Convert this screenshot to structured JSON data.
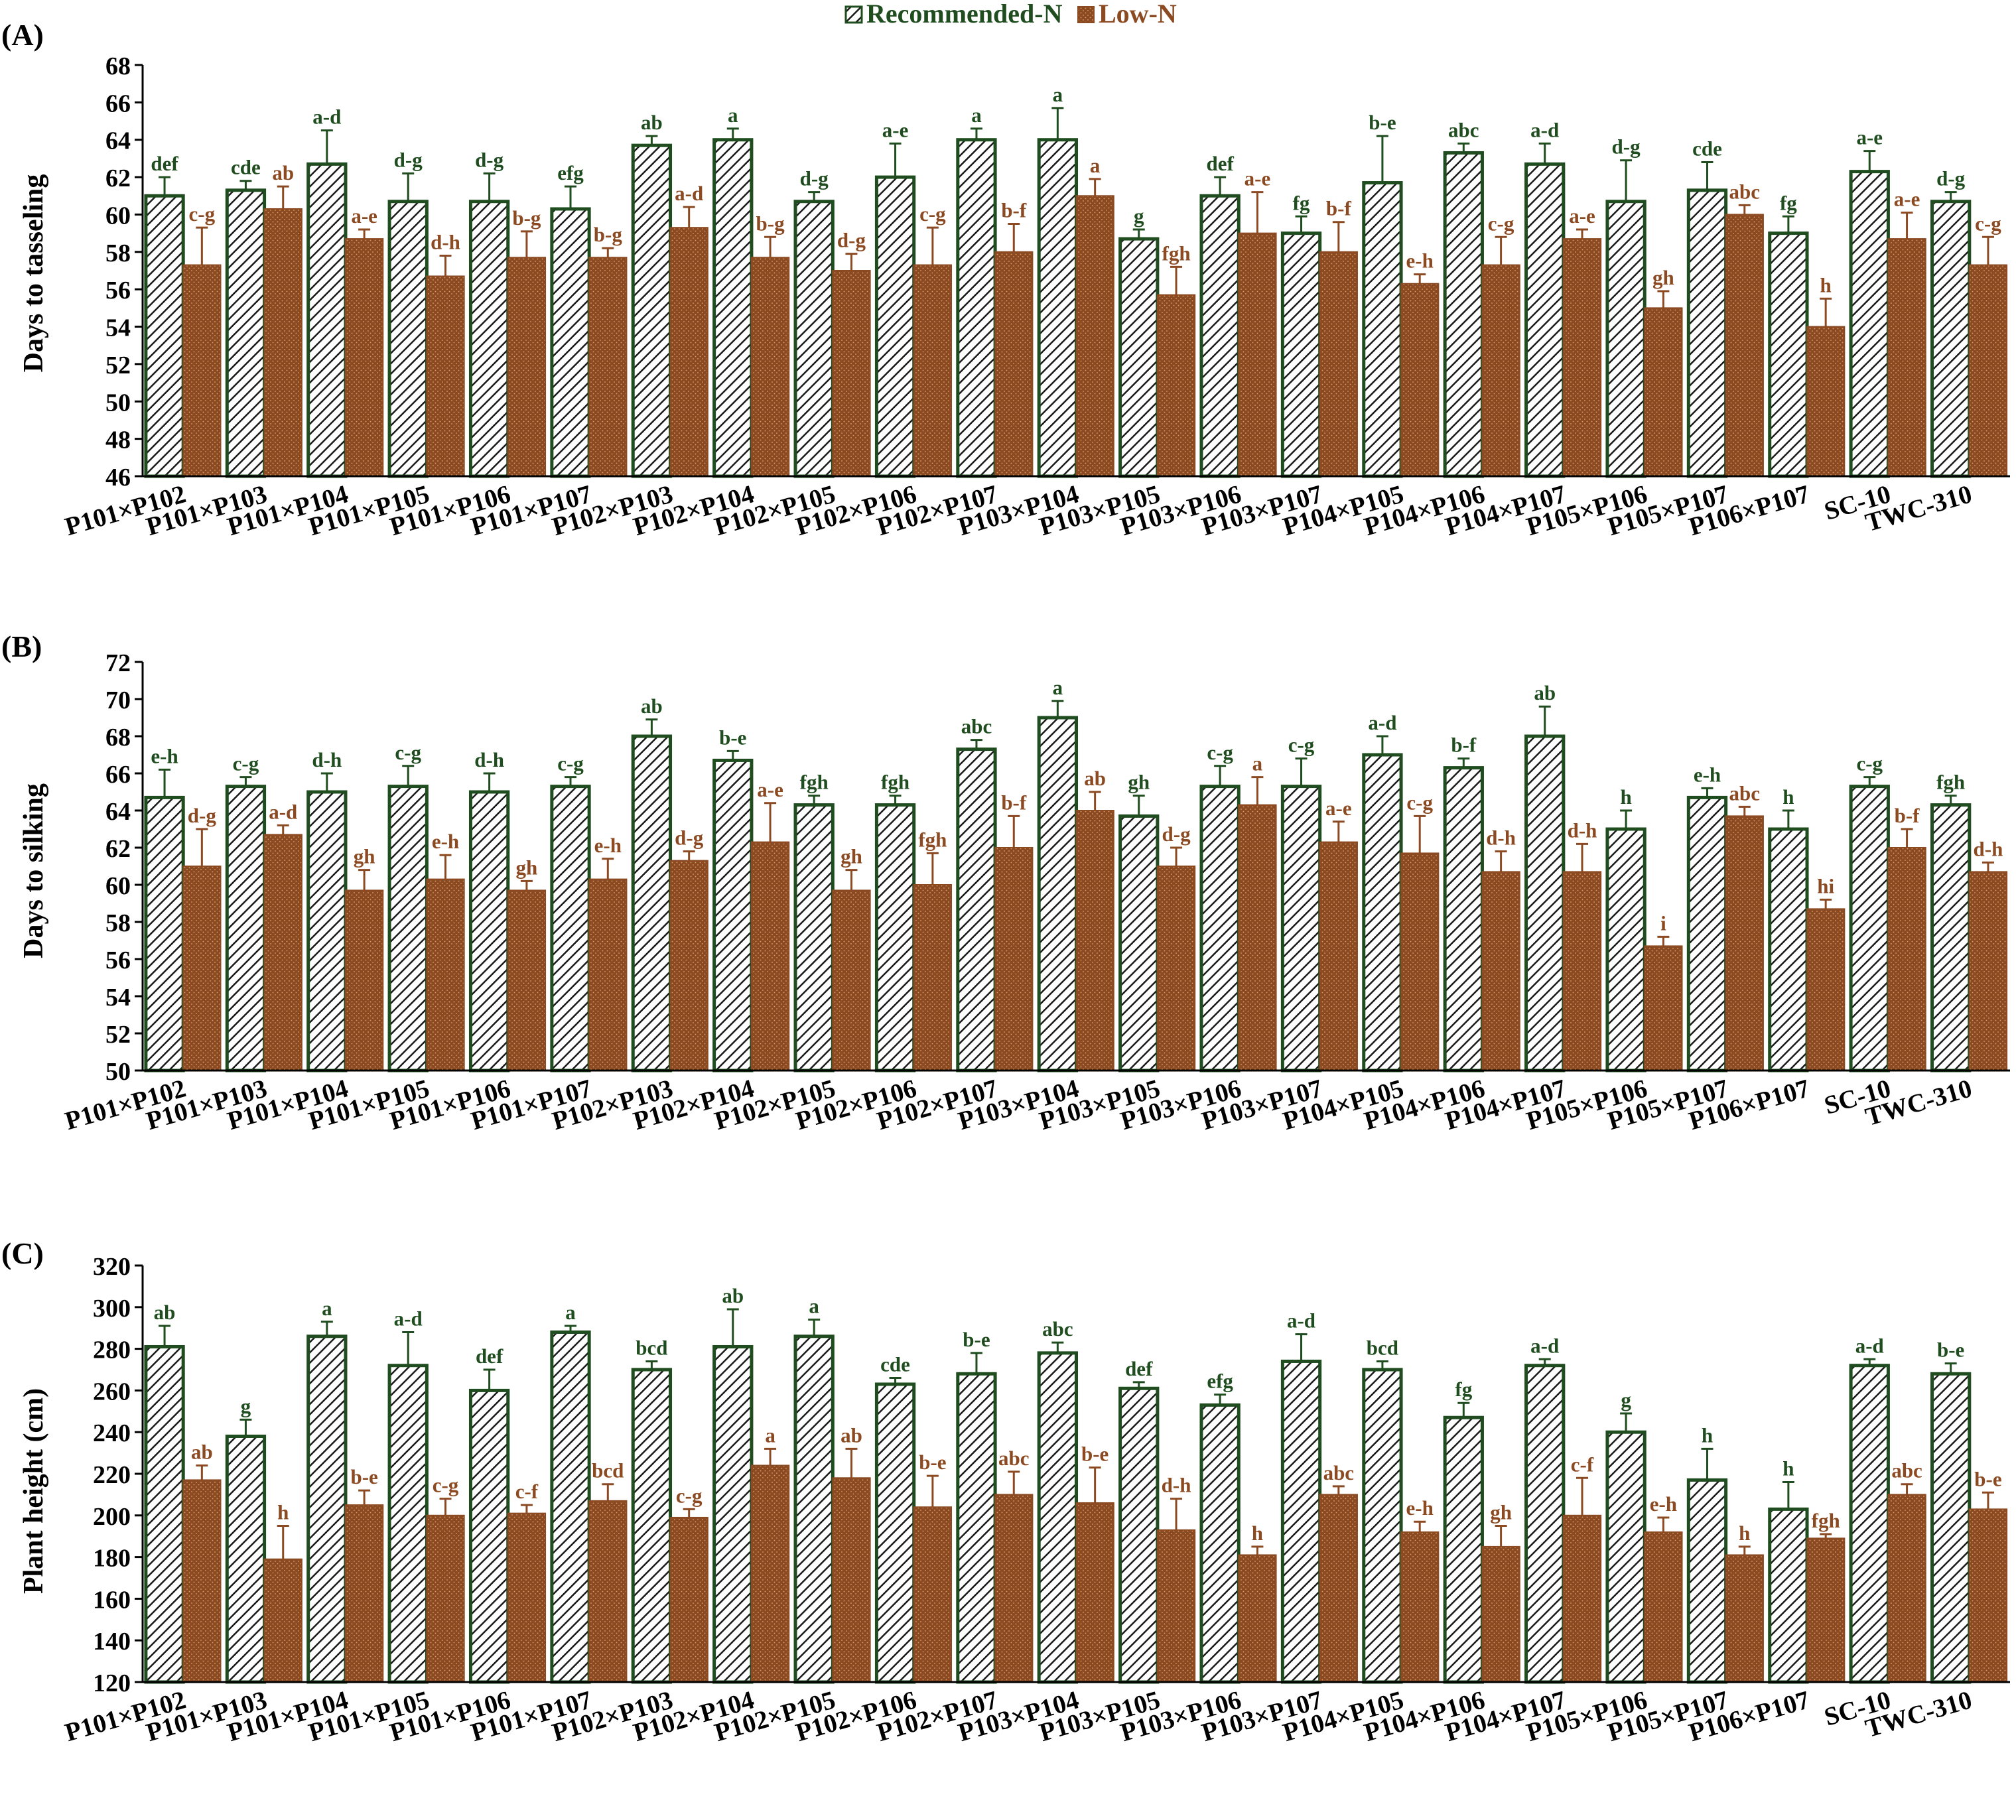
{
  "legend": {
    "recommended_label": "Recommended-N",
    "low_label": "Low-N"
  },
  "colors": {
    "recommended_border": "#1f4d1f",
    "recommended_hatch": "#1a1a1a",
    "low_fill": "#8b4a22",
    "recommended_letter": "#1f4d1f",
    "low_letter": "#8b4a22",
    "axis": "#000000"
  },
  "chart_data": [
    {
      "type": "bar",
      "panel_label": "(A)",
      "ylabel": "Days to tasseling",
      "ylim": [
        46,
        68
      ],
      "ytick_step": 2,
      "grid": false,
      "categories": [
        "P101×P102",
        "P101×P103",
        "P101×P104",
        "P101×P105",
        "P101×P106",
        "P101×P107",
        "P102×P103",
        "P102×P104",
        "P102×P105",
        "P102×P106",
        "P102×P107",
        "P103×P104",
        "P103×P105",
        "P103×P106",
        "P103×P107",
        "P104×P105",
        "P104×P106",
        "P104×P107",
        "P105×P106",
        "P105×P107",
        "P106×P107",
        "SC-10",
        "TWC-310"
      ],
      "series": [
        {
          "name": "Recommended-N",
          "values": [
            61.0,
            61.3,
            62.7,
            60.7,
            60.7,
            60.3,
            63.7,
            64.0,
            60.7,
            62.0,
            64.0,
            64.0,
            58.7,
            61.0,
            59.0,
            61.7,
            63.3,
            62.7,
            60.7,
            61.3,
            59.0,
            62.3,
            60.7
          ],
          "errors": [
            1.0,
            0.5,
            1.8,
            1.5,
            1.5,
            1.2,
            0.5,
            0.6,
            0.5,
            1.8,
            0.6,
            1.7,
            0.5,
            1.0,
            0.9,
            2.5,
            0.5,
            1.1,
            2.2,
            1.5,
            0.9,
            1.1,
            0.5
          ],
          "letters": [
            "def",
            "cde",
            "a-d",
            "d-g",
            "d-g",
            "efg",
            "ab",
            "a",
            "d-g",
            "a-e",
            "a",
            "a",
            "g",
            "def",
            "fg",
            "b-e",
            "abc",
            "a-d",
            "d-g",
            "cde",
            "fg",
            "a-e",
            "d-g"
          ]
        },
        {
          "name": "Low-N",
          "values": [
            57.3,
            60.3,
            58.7,
            56.7,
            57.7,
            57.7,
            59.3,
            57.7,
            57.0,
            57.3,
            58.0,
            61.0,
            55.7,
            59.0,
            58.0,
            56.3,
            57.3,
            58.7,
            55.0,
            60.0,
            54.0,
            58.7,
            57.3
          ],
          "errors": [
            2.0,
            1.2,
            0.5,
            1.1,
            1.4,
            0.5,
            1.1,
            1.1,
            0.9,
            2.0,
            1.5,
            0.9,
            1.5,
            2.2,
            1.6,
            0.5,
            1.5,
            0.5,
            0.9,
            0.5,
            1.5,
            1.4,
            1.5
          ],
          "letters": [
            "c-g",
            "ab",
            "a-e",
            "d-h",
            "b-g",
            "b-g",
            "a-d",
            "b-g",
            "d-g",
            "c-g",
            "b-f",
            "a",
            "fgh",
            "a-e",
            "b-f",
            "e-h",
            "c-g",
            "a-e",
            "gh",
            "abc",
            "h",
            "a-e",
            "c-g"
          ]
        }
      ]
    },
    {
      "type": "bar",
      "panel_label": "(B)",
      "ylabel": "Days to  silking",
      "ylim": [
        50,
        72
      ],
      "ytick_step": 2,
      "grid": false,
      "categories": [
        "P101×P102",
        "P101×P103",
        "P101×P104",
        "P101×P105",
        "P101×P106",
        "P101×P107",
        "P102×P103",
        "P102×P104",
        "P102×P105",
        "P102×P106",
        "P102×P107",
        "P103×P104",
        "P103×P105",
        "P103×P106",
        "P103×P107",
        "P104×P105",
        "P104×P106",
        "P104×P107",
        "P105×P106",
        "P105×P107",
        "P106×P107",
        "SC-10",
        "TWC-310"
      ],
      "series": [
        {
          "name": "Recommended-N",
          "values": [
            64.7,
            65.3,
            65.0,
            65.3,
            65.0,
            65.3,
            68.0,
            66.7,
            64.3,
            64.3,
            67.3,
            69.0,
            63.7,
            65.3,
            65.3,
            67.0,
            66.3,
            68.0,
            63.0,
            64.7,
            63.0,
            65.3,
            64.3
          ],
          "errors": [
            1.5,
            0.5,
            1.0,
            1.1,
            1.0,
            0.5,
            0.9,
            0.5,
            0.5,
            0.5,
            0.5,
            0.9,
            1.1,
            1.1,
            1.5,
            1.0,
            0.5,
            1.6,
            1.0,
            0.5,
            1.0,
            0.5,
            0.5
          ],
          "letters": [
            "e-h",
            "c-g",
            "d-h",
            "c-g",
            "d-h",
            "c-g",
            "ab",
            "b-e",
            "fgh",
            "fgh",
            "abc",
            "a",
            "gh",
            "c-g",
            "c-g",
            "a-d",
            "b-f",
            "ab",
            "h",
            "e-h",
            "h",
            "c-g",
            "fgh"
          ]
        },
        {
          "name": "Low-N",
          "values": [
            61.0,
            62.7,
            59.7,
            60.3,
            59.7,
            60.3,
            61.3,
            62.3,
            59.7,
            60.0,
            62.0,
            64.0,
            61.0,
            64.3,
            62.3,
            61.7,
            60.7,
            60.7,
            56.7,
            63.7,
            58.7,
            62.0,
            60.7
          ],
          "errors": [
            2.0,
            0.5,
            1.1,
            1.3,
            0.5,
            1.1,
            0.5,
            2.1,
            1.1,
            1.7,
            1.7,
            1.0,
            1.0,
            1.5,
            1.1,
            2.0,
            1.1,
            1.5,
            0.5,
            0.5,
            0.5,
            1.0,
            0.5
          ],
          "letters": [
            "d-g",
            "a-d",
            "gh",
            "e-h",
            "gh",
            "e-h",
            "d-g",
            "a-e",
            "gh",
            "fgh",
            "b-f",
            "ab",
            "d-g",
            "a",
            "a-e",
            "c-g",
            "d-h",
            "d-h",
            "i",
            "abc",
            "hi",
            "b-f",
            "d-h"
          ]
        }
      ]
    },
    {
      "type": "bar",
      "panel_label": "(C)",
      "ylabel": "Plant height (cm)",
      "ylim": [
        120,
        320
      ],
      "ytick_step": 20,
      "grid": false,
      "categories": [
        "P101×P102",
        "P101×P103",
        "P101×P104",
        "P101×P105",
        "P101×P106",
        "P101×P107",
        "P102×P103",
        "P102×P104",
        "P102×P105",
        "P102×P106",
        "P102×P107",
        "P103×P104",
        "P103×P105",
        "P103×P106",
        "P103×P107",
        "P104×P105",
        "P104×P106",
        "P104×P107",
        "P105×P106",
        "P105×P107",
        "P106×P107",
        "SC-10",
        "TWC-310"
      ],
      "series": [
        {
          "name": "Recommended-N",
          "values": [
            281,
            238,
            286,
            272,
            260,
            288,
            270,
            281,
            286,
            263,
            268,
            278,
            261,
            253,
            274,
            270,
            247,
            272,
            240,
            217,
            203,
            272,
            268
          ],
          "errors": [
            10,
            8,
            7,
            16,
            10,
            3,
            4,
            18,
            8,
            3,
            10,
            5,
            3,
            5,
            13,
            4,
            7,
            3,
            9,
            15,
            13,
            3,
            5
          ],
          "letters": [
            "ab",
            "g",
            "a",
            "a-d",
            "def",
            "a",
            "bcd",
            "ab",
            "a",
            "cde",
            "b-e",
            "abc",
            "def",
            "efg",
            "a-d",
            "bcd",
            "fg",
            "a-d",
            "g",
            "h",
            "h",
            "a-d",
            "b-e"
          ]
        },
        {
          "name": "Low-N",
          "values": [
            217,
            179,
            205,
            200,
            201,
            207,
            199,
            224,
            218,
            204,
            210,
            206,
            193,
            181,
            210,
            192,
            185,
            200,
            192,
            181,
            189,
            210,
            203
          ],
          "errors": [
            7,
            16,
            7,
            8,
            4,
            8,
            4,
            8,
            14,
            15,
            11,
            17,
            15,
            4,
            4,
            5,
            10,
            18,
            7,
            4,
            2,
            5,
            8
          ],
          "letters": [
            "ab",
            "h",
            "b-e",
            "c-g",
            "c-f",
            "bcd",
            "c-g",
            "a",
            "ab",
            "b-e",
            "abc",
            "b-e",
            "d-h",
            "h",
            "abc",
            "e-h",
            "gh",
            "c-f",
            "e-h",
            "h",
            "fgh",
            "abc",
            "b-e"
          ]
        }
      ]
    }
  ]
}
